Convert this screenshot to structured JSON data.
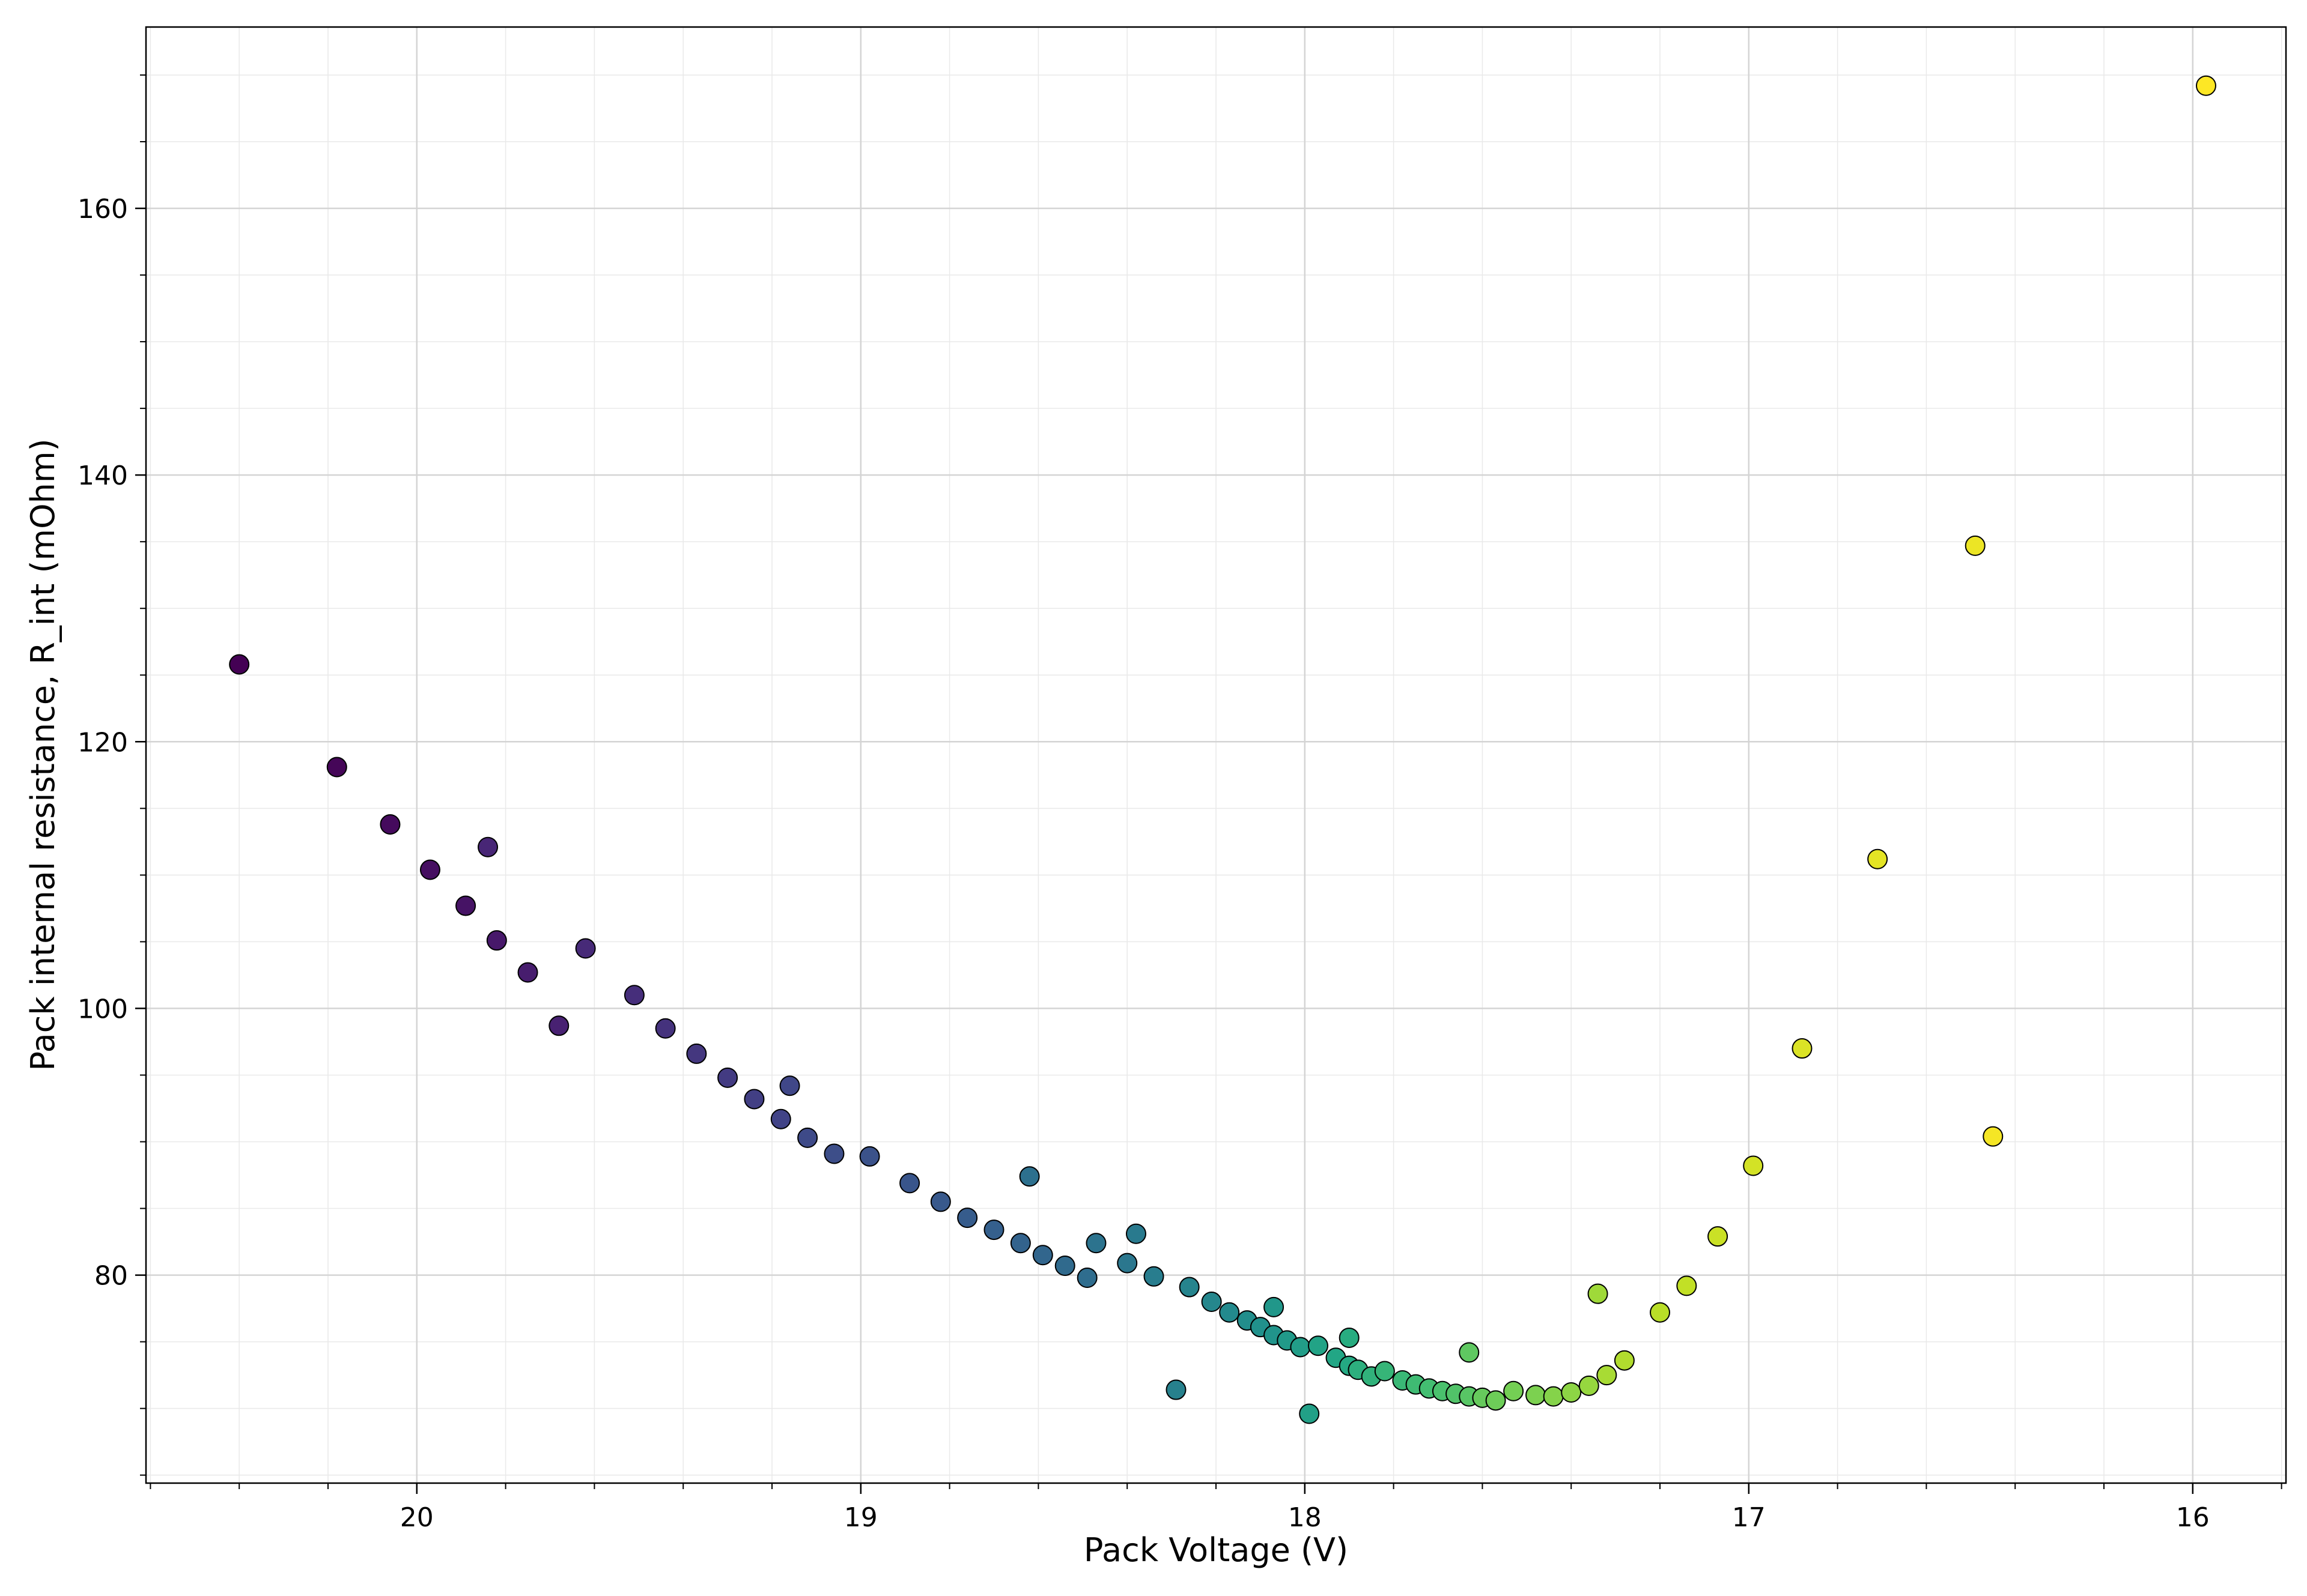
{
  "chart_data": {
    "type": "scatter",
    "title": "",
    "xlabel": "Pack Voltage (V)",
    "ylabel": "Pack internal resistance, R_int (mOhm)",
    "x_inverted": true,
    "xlim": [
      20.61,
      15.79
    ],
    "ylim": [
      64.4,
      173.6
    ],
    "x_ticks": [
      20,
      19,
      18,
      17,
      16
    ],
    "x_tick_labels": [
      "20",
      "19",
      "18",
      "17",
      "16"
    ],
    "y_ticks": [
      80,
      100,
      120,
      140,
      160
    ],
    "y_tick_labels": [
      "80",
      "100",
      "120",
      "140",
      "160"
    ],
    "grid": true,
    "minor_grid": true,
    "colormap": "viridis",
    "color_encoding": "sequential (dark purple → yellow) in order of measurement",
    "marker_edge_color": "#000000",
    "series": [
      {
        "points": [
          [
            20.4,
            125.8
          ],
          [
            20.18,
            118.1
          ],
          [
            20.06,
            113.8
          ],
          [
            19.97,
            110.4
          ],
          [
            19.89,
            107.7
          ],
          [
            19.82,
            105.1
          ],
          [
            19.75,
            102.7
          ],
          [
            19.68,
            98.7
          ],
          [
            19.84,
            112.1
          ],
          [
            19.62,
            104.5
          ],
          [
            19.51,
            101.0
          ],
          [
            19.44,
            98.5
          ],
          [
            19.37,
            96.6
          ],
          [
            19.3,
            94.8
          ],
          [
            19.24,
            93.2
          ],
          [
            19.18,
            91.7
          ],
          [
            19.16,
            94.2
          ],
          [
            19.12,
            90.3
          ],
          [
            19.06,
            89.1
          ],
          [
            18.98,
            88.9
          ],
          [
            18.89,
            86.9
          ],
          [
            18.82,
            85.5
          ],
          [
            18.76,
            84.3
          ],
          [
            18.7,
            83.4
          ],
          [
            18.64,
            82.4
          ],
          [
            18.59,
            81.5
          ],
          [
            18.54,
            80.7
          ],
          [
            18.49,
            79.8
          ],
          [
            18.62,
            87.4
          ],
          [
            18.47,
            82.4
          ],
          [
            18.4,
            80.9
          ],
          [
            18.38,
            83.1
          ],
          [
            18.34,
            79.9
          ],
          [
            18.29,
            71.4
          ],
          [
            18.26,
            79.1
          ],
          [
            18.21,
            78.0
          ],
          [
            18.17,
            77.2
          ],
          [
            18.13,
            76.6
          ],
          [
            18.1,
            76.1
          ],
          [
            18.07,
            75.5
          ],
          [
            18.07,
            77.6
          ],
          [
            18.04,
            75.1
          ],
          [
            18.01,
            74.6
          ],
          [
            17.99,
            69.6
          ],
          [
            17.97,
            74.7
          ],
          [
            17.93,
            73.8
          ],
          [
            17.9,
            73.2
          ],
          [
            17.9,
            75.3
          ],
          [
            17.88,
            72.9
          ],
          [
            17.85,
            72.4
          ],
          [
            17.82,
            72.8
          ],
          [
            17.78,
            72.1
          ],
          [
            17.75,
            71.8
          ],
          [
            17.72,
            71.5
          ],
          [
            17.69,
            71.3
          ],
          [
            17.66,
            71.1
          ],
          [
            17.63,
            70.9
          ],
          [
            17.63,
            74.2
          ],
          [
            17.6,
            70.8
          ],
          [
            17.57,
            70.6
          ],
          [
            17.53,
            71.3
          ],
          [
            17.48,
            71.0
          ],
          [
            17.44,
            70.9
          ],
          [
            17.4,
            71.2
          ],
          [
            17.36,
            71.7
          ],
          [
            17.34,
            78.6
          ],
          [
            17.32,
            72.5
          ],
          [
            17.28,
            73.6
          ],
          [
            17.2,
            77.2
          ],
          [
            17.14,
            79.2
          ],
          [
            17.07,
            82.9
          ],
          [
            16.99,
            88.2
          ],
          [
            16.88,
            97.0
          ],
          [
            16.71,
            111.2
          ],
          [
            16.49,
            134.7
          ],
          [
            16.45,
            90.4
          ],
          [
            15.97,
            169.2
          ]
        ]
      }
    ]
  }
}
